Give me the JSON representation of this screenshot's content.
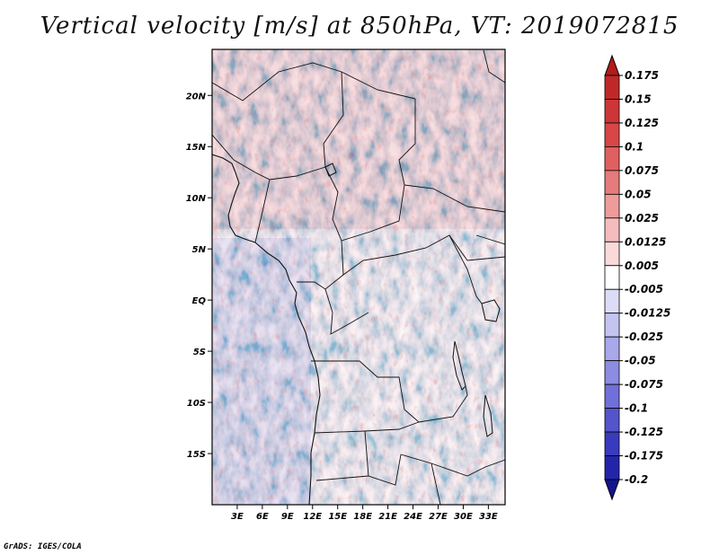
{
  "title": "Vertical velocity [m/s] at 850hPa, VT: 2019072815",
  "credit": "GrADS: IGES/COLA",
  "map": {
    "lon_range": [
      0,
      35
    ],
    "lat_range": [
      -20,
      24.5
    ],
    "lat_ticks": [
      "20N",
      "15N",
      "10N",
      "5N",
      "EQ",
      "5S",
      "10S",
      "15S"
    ],
    "lon_ticks": [
      "3E",
      "6E",
      "9E",
      "12E",
      "15E",
      "18E",
      "21E",
      "24E",
      "27E",
      "30E",
      "33E"
    ]
  },
  "colorbar": {
    "levels": [
      "0.175",
      "0.15",
      "0.125",
      "0.1",
      "0.075",
      "0.05",
      "0.025",
      "0.0125",
      "0.005",
      "-0.005",
      "-0.0125",
      "-0.025",
      "-0.05",
      "-0.075",
      "-0.1",
      "-0.125",
      "-0.175",
      "-0.2"
    ],
    "colors": [
      "#b11c1c",
      "#c02828",
      "#cc3636",
      "#d84646",
      "#e06060",
      "#e67b7b",
      "#ee9b9b",
      "#f4bcbc",
      "#f9dada",
      "#ffffff",
      "#dcdcf6",
      "#c4c4f0",
      "#a8a8ea",
      "#8c8ce2",
      "#7070d8",
      "#5454cc",
      "#3a3abe",
      "#2424aa",
      "#14148e"
    ]
  }
}
